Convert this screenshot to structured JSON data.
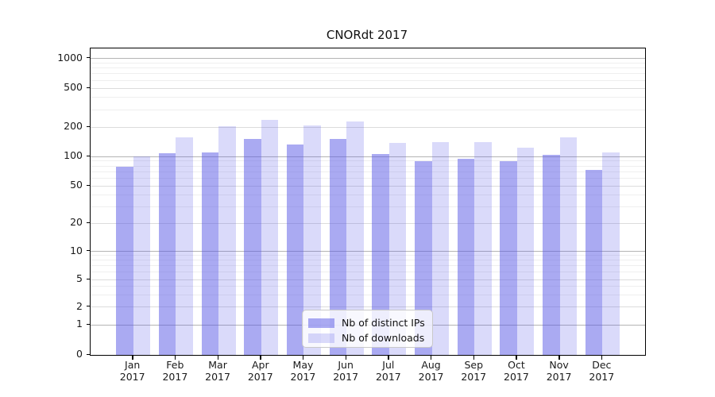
{
  "chart_data": {
    "type": "bar",
    "title": "CNORdt 2017",
    "yscale": "symlog",
    "ylim": [
      0,
      1270
    ],
    "y_ticks": [
      0,
      1,
      2,
      5,
      10,
      20,
      50,
      100,
      200,
      500,
      1000
    ],
    "grid": true,
    "legend_position": "lower-center-inside",
    "categories": [
      "Jan 2017",
      "Feb 2017",
      "Mar 2017",
      "Apr 2017",
      "May 2017",
      "Jun 2017",
      "Jul 2017",
      "Aug 2017",
      "Sep 2017",
      "Oct 2017",
      "Nov 2017",
      "Dec 2017"
    ],
    "x_tick_months": [
      "Jan",
      "Feb",
      "Mar",
      "Apr",
      "May",
      "Jun",
      "Jul",
      "Aug",
      "Sep",
      "Oct",
      "Nov",
      "Dec"
    ],
    "x_tick_year": "2017",
    "series": [
      {
        "name": "Nb of distinct IPs",
        "color": "#a9a9f4",
        "fill": "rgba(85,85,230,0.5)",
        "values": [
          78,
          109,
          111,
          150,
          134,
          150,
          107,
          90,
          95,
          90,
          104,
          73
        ]
      },
      {
        "name": "Nb of downloads",
        "color": "#d8d8f8",
        "fill": "rgba(85,85,230,0.22)",
        "values": [
          100,
          156,
          203,
          238,
          206,
          226,
          137,
          140,
          141,
          123,
          158,
          111
        ]
      }
    ]
  }
}
